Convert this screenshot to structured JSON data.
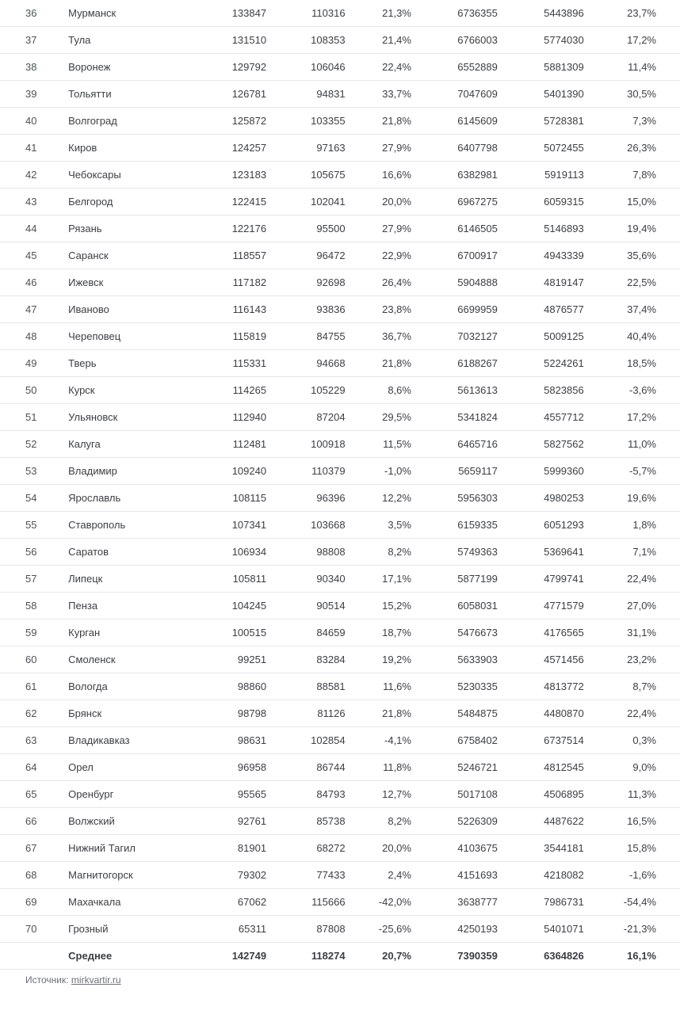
{
  "table": {
    "rows": [
      {
        "rank": "36",
        "city": "Мурманск",
        "v1": "133847",
        "v2": "110316",
        "p1": "21,3%",
        "v3": "6736355",
        "v4": "5443896",
        "p2": "23,7%"
      },
      {
        "rank": "37",
        "city": "Тула",
        "v1": "131510",
        "v2": "108353",
        "p1": "21,4%",
        "v3": "6766003",
        "v4": "5774030",
        "p2": "17,2%"
      },
      {
        "rank": "38",
        "city": "Воронеж",
        "v1": "129792",
        "v2": "106046",
        "p1": "22,4%",
        "v3": "6552889",
        "v4": "5881309",
        "p2": "11,4%"
      },
      {
        "rank": "39",
        "city": "Тольятти",
        "v1": "126781",
        "v2": "94831",
        "p1": "33,7%",
        "v3": "7047609",
        "v4": "5401390",
        "p2": "30,5%"
      },
      {
        "rank": "40",
        "city": "Волгоград",
        "v1": "125872",
        "v2": "103355",
        "p1": "21,8%",
        "v3": "6145609",
        "v4": "5728381",
        "p2": "7,3%"
      },
      {
        "rank": "41",
        "city": "Киров",
        "v1": "124257",
        "v2": "97163",
        "p1": "27,9%",
        "v3": "6407798",
        "v4": "5072455",
        "p2": "26,3%"
      },
      {
        "rank": "42",
        "city": "Чебоксары",
        "v1": "123183",
        "v2": "105675",
        "p1": "16,6%",
        "v3": "6382981",
        "v4": "5919113",
        "p2": "7,8%"
      },
      {
        "rank": "43",
        "city": "Белгород",
        "v1": "122415",
        "v2": "102041",
        "p1": "20,0%",
        "v3": "6967275",
        "v4": "6059315",
        "p2": "15,0%"
      },
      {
        "rank": "44",
        "city": "Рязань",
        "v1": "122176",
        "v2": "95500",
        "p1": "27,9%",
        "v3": "6146505",
        "v4": "5146893",
        "p2": "19,4%"
      },
      {
        "rank": "45",
        "city": "Саранск",
        "v1": "118557",
        "v2": "96472",
        "p1": "22,9%",
        "v3": "6700917",
        "v4": "4943339",
        "p2": "35,6%"
      },
      {
        "rank": "46",
        "city": "Ижевск",
        "v1": "117182",
        "v2": "92698",
        "p1": "26,4%",
        "v3": "5904888",
        "v4": "4819147",
        "p2": "22,5%"
      },
      {
        "rank": "47",
        "city": "Иваново",
        "v1": "116143",
        "v2": "93836",
        "p1": "23,8%",
        "v3": "6699959",
        "v4": "4876577",
        "p2": "37,4%"
      },
      {
        "rank": "48",
        "city": "Череповец",
        "v1": "115819",
        "v2": "84755",
        "p1": "36,7%",
        "v3": "7032127",
        "v4": "5009125",
        "p2": "40,4%"
      },
      {
        "rank": "49",
        "city": "Тверь",
        "v1": "115331",
        "v2": "94668",
        "p1": "21,8%",
        "v3": "6188267",
        "v4": "5224261",
        "p2": "18,5%"
      },
      {
        "rank": "50",
        "city": "Курск",
        "v1": "114265",
        "v2": "105229",
        "p1": "8,6%",
        "v3": "5613613",
        "v4": "5823856",
        "p2": "-3,6%"
      },
      {
        "rank": "51",
        "city": "Ульяновск",
        "v1": "112940",
        "v2": "87204",
        "p1": "29,5%",
        "v3": "5341824",
        "v4": "4557712",
        "p2": "17,2%"
      },
      {
        "rank": "52",
        "city": "Калуга",
        "v1": "112481",
        "v2": "100918",
        "p1": "11,5%",
        "v3": "6465716",
        "v4": "5827562",
        "p2": "11,0%"
      },
      {
        "rank": "53",
        "city": "Владимир",
        "v1": "109240",
        "v2": "110379",
        "p1": "-1,0%",
        "v3": "5659117",
        "v4": "5999360",
        "p2": "-5,7%"
      },
      {
        "rank": "54",
        "city": "Ярославль",
        "v1": "108115",
        "v2": "96396",
        "p1": "12,2%",
        "v3": "5956303",
        "v4": "4980253",
        "p2": "19,6%"
      },
      {
        "rank": "55",
        "city": "Ставрополь",
        "v1": "107341",
        "v2": "103668",
        "p1": "3,5%",
        "v3": "6159335",
        "v4": "6051293",
        "p2": "1,8%"
      },
      {
        "rank": "56",
        "city": "Саратов",
        "v1": "106934",
        "v2": "98808",
        "p1": "8,2%",
        "v3": "5749363",
        "v4": "5369641",
        "p2": "7,1%"
      },
      {
        "rank": "57",
        "city": "Липецк",
        "v1": "105811",
        "v2": "90340",
        "p1": "17,1%",
        "v3": "5877199",
        "v4": "4799741",
        "p2": "22,4%"
      },
      {
        "rank": "58",
        "city": "Пенза",
        "v1": "104245",
        "v2": "90514",
        "p1": "15,2%",
        "v3": "6058031",
        "v4": "4771579",
        "p2": "27,0%"
      },
      {
        "rank": "59",
        "city": "Курган",
        "v1": "100515",
        "v2": "84659",
        "p1": "18,7%",
        "v3": "5476673",
        "v4": "4176565",
        "p2": "31,1%"
      },
      {
        "rank": "60",
        "city": "Смоленск",
        "v1": "99251",
        "v2": "83284",
        "p1": "19,2%",
        "v3": "5633903",
        "v4": "4571456",
        "p2": "23,2%"
      },
      {
        "rank": "61",
        "city": "Вологда",
        "v1": "98860",
        "v2": "88581",
        "p1": "11,6%",
        "v3": "5230335",
        "v4": "4813772",
        "p2": "8,7%"
      },
      {
        "rank": "62",
        "city": "Брянск",
        "v1": "98798",
        "v2": "81126",
        "p1": "21,8%",
        "v3": "5484875",
        "v4": "4480870",
        "p2": "22,4%"
      },
      {
        "rank": "63",
        "city": "Владикавказ",
        "v1": "98631",
        "v2": "102854",
        "p1": "-4,1%",
        "v3": "6758402",
        "v4": "6737514",
        "p2": "0,3%"
      },
      {
        "rank": "64",
        "city": "Орел",
        "v1": "96958",
        "v2": "86744",
        "p1": "11,8%",
        "v3": "5246721",
        "v4": "4812545",
        "p2": "9,0%"
      },
      {
        "rank": "65",
        "city": "Оренбург",
        "v1": "95565",
        "v2": "84793",
        "p1": "12,7%",
        "v3": "5017108",
        "v4": "4506895",
        "p2": "11,3%"
      },
      {
        "rank": "66",
        "city": "Волжский",
        "v1": "92761",
        "v2": "85738",
        "p1": "8,2%",
        "v3": "5226309",
        "v4": "4487622",
        "p2": "16,5%"
      },
      {
        "rank": "67",
        "city": "Нижний Тагил",
        "v1": "81901",
        "v2": "68272",
        "p1": "20,0%",
        "v3": "4103675",
        "v4": "3544181",
        "p2": "15,8%"
      },
      {
        "rank": "68",
        "city": "Магнитогорск",
        "v1": "79302",
        "v2": "77433",
        "p1": "2,4%",
        "v3": "4151693",
        "v4": "4218082",
        "p2": "-1,6%"
      },
      {
        "rank": "69",
        "city": "Махачкала",
        "v1": "67062",
        "v2": "115666",
        "p1": "-42,0%",
        "v3": "3638777",
        "v4": "7986731",
        "p2": "-54,4%"
      },
      {
        "rank": "70",
        "city": "Грозный",
        "v1": "65311",
        "v2": "87808",
        "p1": "-25,6%",
        "v3": "4250193",
        "v4": "5401071",
        "p2": "-21,3%"
      }
    ],
    "summary": {
      "rank": "",
      "city": "Среднее",
      "v1": "142749",
      "v2": "118274",
      "p1": "20,7%",
      "v3": "7390359",
      "v4": "6364826",
      "p2": "16,1%"
    }
  },
  "source": {
    "label": "Источник: ",
    "link_text": "mirkvartir.ru"
  }
}
